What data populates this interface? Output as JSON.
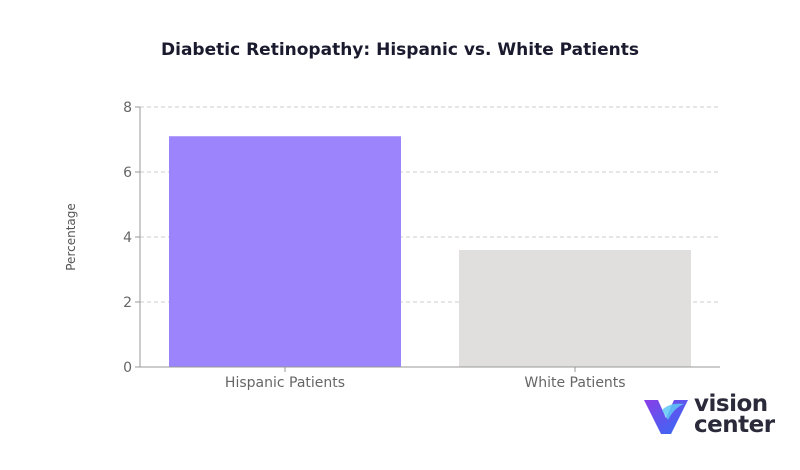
{
  "chart_data": {
    "type": "bar",
    "title": "Diabetic Retinopathy: Hispanic vs. White Patients",
    "xlabel": "",
    "ylabel": "Percentage",
    "categories": [
      "Hispanic Patients",
      "White Patients"
    ],
    "values": [
      7.1,
      3.6
    ],
    "ylim": [
      0,
      8
    ],
    "yticks": [
      0,
      2,
      4,
      6,
      8
    ],
    "grid": true,
    "colors": [
      "#9b84fc",
      "#e0dfdd"
    ]
  },
  "brand": {
    "line1": "vision",
    "line2": "center",
    "icon": "vision-center-logo-icon",
    "colors": [
      "#7b3fe4",
      "#2f6df6"
    ]
  }
}
